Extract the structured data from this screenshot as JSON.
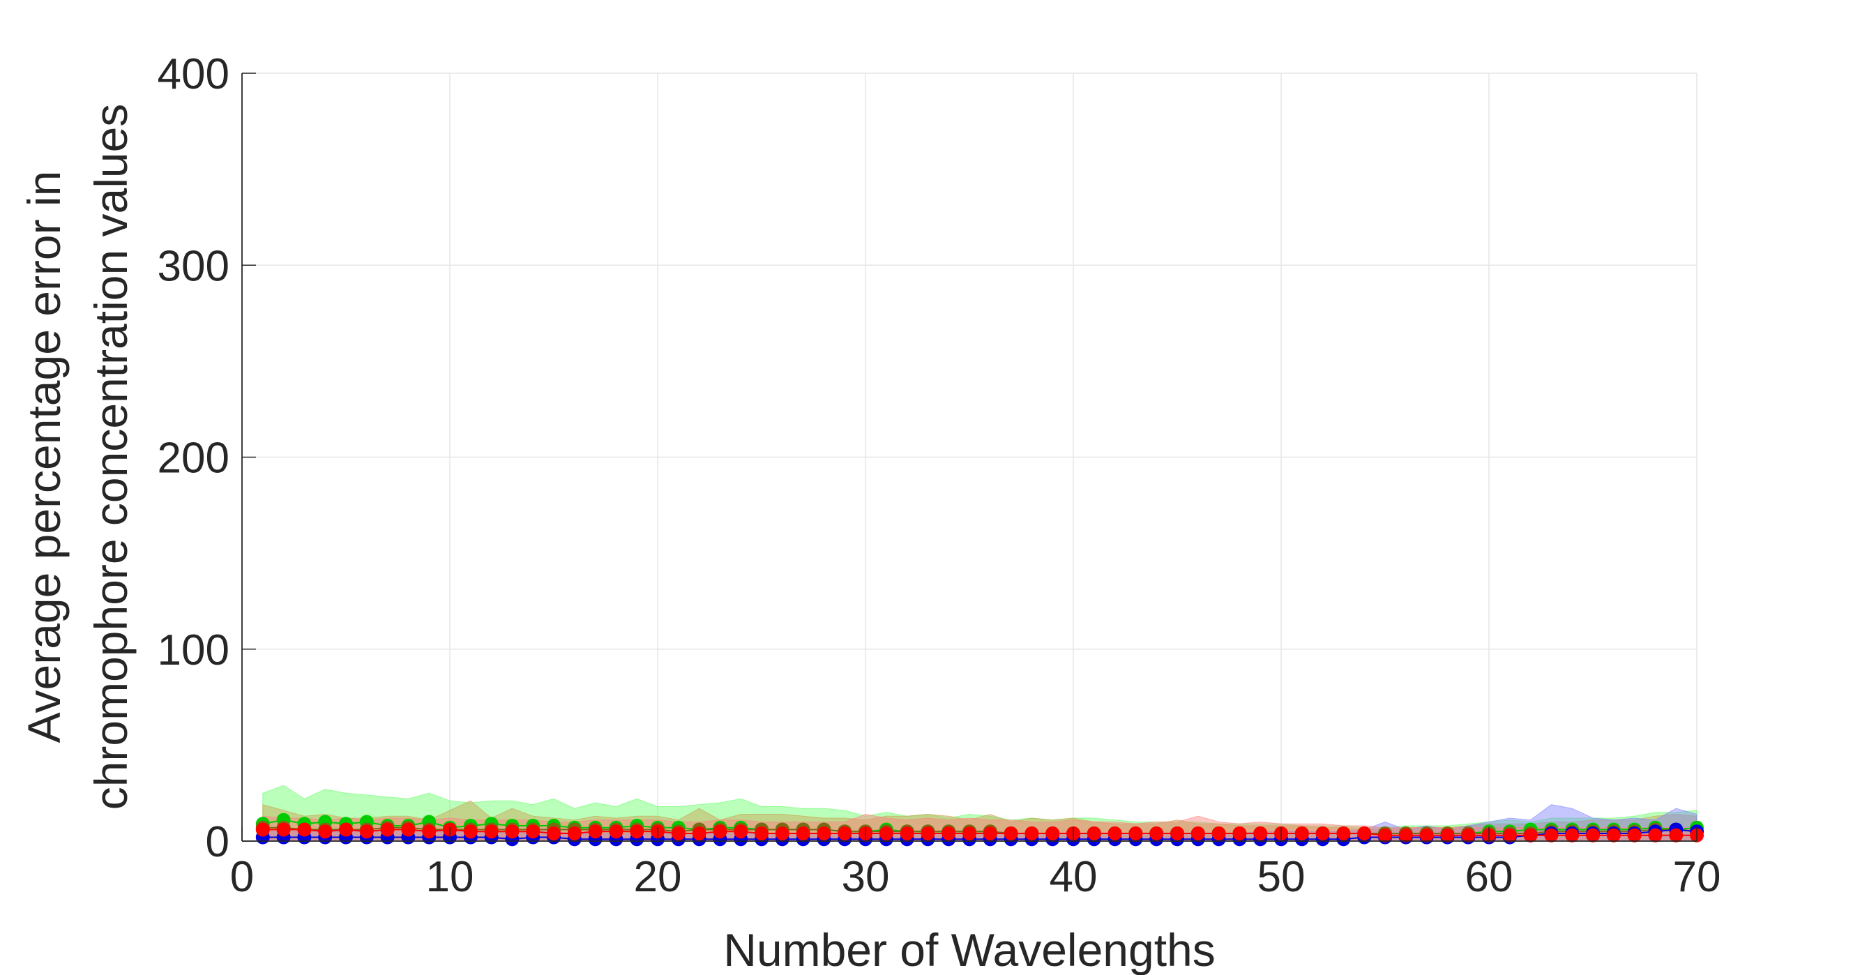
{
  "chart_data": {
    "type": "scatter",
    "xlabel": "Number of Wavelengths",
    "ylabel": [
      "Average percentage error in",
      "chromophore concentration values"
    ],
    "xlim": [
      0,
      70
    ],
    "ylim": [
      0,
      400
    ],
    "xticks": [
      "0",
      "10",
      "20",
      "30",
      "40",
      "50",
      "60",
      "70"
    ],
    "yticks": [
      "0",
      "100",
      "200",
      "300",
      "400"
    ],
    "grid": true,
    "x": [
      1,
      2,
      3,
      4,
      5,
      6,
      7,
      8,
      9,
      10,
      11,
      12,
      13,
      14,
      15,
      16,
      17,
      18,
      19,
      20,
      21,
      22,
      23,
      24,
      25,
      26,
      27,
      28,
      29,
      30,
      31,
      32,
      33,
      34,
      35,
      36,
      37,
      38,
      39,
      40,
      41,
      42,
      43,
      44,
      45,
      46,
      47,
      48,
      49,
      50,
      51,
      52,
      53,
      54,
      55,
      56,
      57,
      58,
      59,
      60,
      61,
      62,
      63,
      64,
      65,
      66,
      67,
      68,
      69,
      70
    ],
    "series": [
      {
        "color": "#00cc00",
        "band_color": "#66ff66",
        "values": [
          9,
          11,
          9,
          10,
          9,
          10,
          8,
          8,
          10,
          7,
          8,
          9,
          8,
          8,
          8,
          7,
          7,
          7,
          8,
          7,
          7,
          6,
          7,
          7,
          6,
          6,
          6,
          6,
          5,
          5,
          6,
          5,
          5,
          5,
          5,
          5,
          4,
          4,
          4,
          4,
          4,
          4,
          4,
          4,
          4,
          4,
          4,
          4,
          4,
          4,
          4,
          4,
          4,
          4,
          4,
          4,
          4,
          4,
          4,
          5,
          5,
          6,
          6,
          6,
          6,
          6,
          6,
          7,
          6,
          7
        ],
        "upper": [
          25,
          29,
          22,
          27,
          25,
          24,
          23,
          22,
          25,
          21,
          20,
          21,
          21,
          19,
          22,
          17,
          20,
          18,
          22,
          18,
          18,
          19,
          20,
          22,
          18,
          18,
          17,
          17,
          16,
          13,
          15,
          13,
          14,
          12,
          14,
          13,
          11,
          12,
          11,
          12,
          12,
          11,
          10,
          10,
          10,
          10,
          9,
          9,
          9,
          9,
          8,
          8,
          8,
          7,
          7,
          8,
          8,
          8,
          9,
          10,
          11,
          10,
          12,
          12,
          12,
          12,
          13,
          15,
          15,
          16
        ]
      },
      {
        "color": "#7a6a14",
        "band_color": "#c9a050",
        "values": [
          7,
          7,
          6,
          6,
          6,
          6,
          7,
          7,
          6,
          6,
          6,
          6,
          6,
          6,
          6,
          6,
          6,
          6,
          6,
          6,
          5,
          6,
          6,
          6,
          6,
          6,
          6,
          6,
          5,
          5,
          5,
          5,
          5,
          5,
          5,
          5,
          4,
          4,
          4,
          4,
          4,
          4,
          4,
          4,
          4,
          4,
          4,
          4,
          4,
          4,
          4,
          4,
          4,
          4,
          4,
          4,
          4,
          4,
          4,
          4,
          4,
          4,
          5,
          5,
          5,
          5,
          5,
          6,
          6,
          5
        ],
        "upper": [
          19,
          16,
          13,
          14,
          12,
          12,
          13,
          13,
          11,
          16,
          21,
          12,
          17,
          13,
          12,
          11,
          13,
          12,
          13,
          13,
          11,
          17,
          11,
          14,
          14,
          14,
          13,
          12,
          12,
          11,
          13,
          13,
          14,
          13,
          11,
          14,
          10,
          12,
          11,
          12,
          10,
          9,
          9,
          9,
          11,
          9,
          9,
          8,
          8,
          8,
          8,
          7,
          7,
          6,
          6,
          7,
          7,
          7,
          8,
          9,
          9,
          9,
          10,
          10,
          11,
          11,
          11,
          13,
          14,
          13
        ]
      },
      {
        "color": "#0000dd",
        "band_color": "#8080ff",
        "values": [
          2,
          2,
          2,
          2,
          2,
          2,
          2,
          2,
          2,
          2,
          2,
          2,
          1,
          2,
          2,
          1,
          1,
          1,
          1,
          1,
          1,
          1,
          1,
          1,
          1,
          1,
          1,
          1,
          1,
          1,
          1,
          1,
          1,
          1,
          1,
          1,
          1,
          1,
          1,
          1,
          1,
          1,
          1,
          1,
          1,
          1,
          1,
          1,
          1,
          1,
          1,
          1,
          1,
          2,
          2,
          2,
          2,
          2,
          2,
          2,
          2,
          3,
          4,
          4,
          4,
          4,
          4,
          5,
          6,
          5
        ],
        "upper": [
          5,
          5,
          5,
          5,
          5,
          5,
          5,
          5,
          5,
          5,
          5,
          5,
          4,
          5,
          5,
          4,
          4,
          4,
          4,
          4,
          4,
          4,
          4,
          4,
          4,
          4,
          4,
          4,
          4,
          4,
          4,
          4,
          4,
          4,
          4,
          4,
          4,
          4,
          4,
          4,
          4,
          4,
          4,
          4,
          4,
          4,
          4,
          4,
          5,
          5,
          5,
          5,
          5,
          6,
          10,
          6,
          8,
          6,
          8,
          10,
          12,
          11,
          19,
          17,
          12,
          11,
          12,
          11,
          17,
          14
        ]
      },
      {
        "color": "#ff0000",
        "band_color": "#ff8080",
        "values": [
          6,
          6,
          6,
          5,
          6,
          5,
          6,
          6,
          5,
          6,
          5,
          5,
          5,
          5,
          4,
          4,
          5,
          5,
          5,
          5,
          4,
          4,
          5,
          5,
          4,
          4,
          4,
          4,
          4,
          4,
          4,
          4,
          4,
          4,
          4,
          4,
          4,
          4,
          4,
          4,
          4,
          4,
          4,
          4,
          4,
          4,
          4,
          4,
          4,
          4,
          4,
          4,
          4,
          4,
          3,
          3,
          3,
          3,
          3,
          3,
          3,
          3,
          3,
          3,
          3,
          3,
          3,
          3,
          3,
          3
        ],
        "upper": [
          13,
          12,
          12,
          11,
          12,
          11,
          12,
          12,
          11,
          12,
          11,
          11,
          11,
          11,
          10,
          10,
          11,
          11,
          11,
          11,
          10,
          10,
          11,
          11,
          10,
          10,
          10,
          10,
          10,
          14,
          12,
          11,
          12,
          11,
          12,
          11,
          11,
          10,
          10,
          11,
          10,
          10,
          9,
          10,
          10,
          13,
          10,
          9,
          10,
          9,
          9,
          9,
          8,
          8,
          7,
          7,
          7,
          7,
          7,
          7,
          7,
          7,
          7,
          7,
          7,
          7,
          7,
          7,
          7,
          7
        ]
      }
    ]
  }
}
